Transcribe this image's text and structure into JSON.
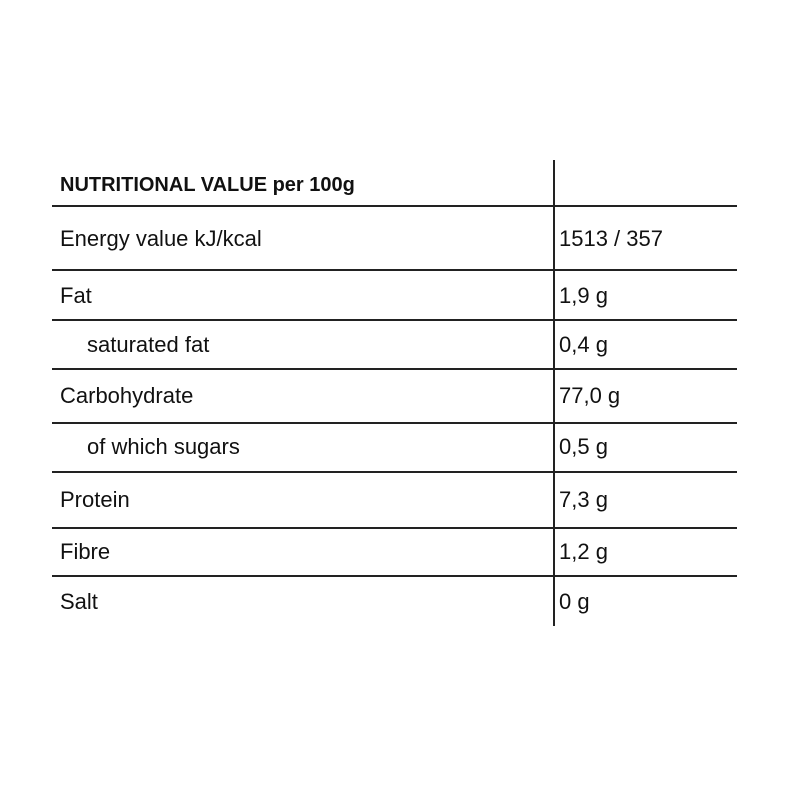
{
  "table": {
    "header": "NUTRITIONAL VALUE per 100g",
    "rows": [
      {
        "label": "Energy value kJ/kcal",
        "value": "1513 / 357"
      },
      {
        "label": "Fat",
        "value": "1,9 g"
      },
      {
        "label": "saturated fat",
        "value": "0,4 g"
      },
      {
        "label": "Carbohydrate",
        "value": "77,0 g"
      },
      {
        "label": "of which sugars",
        "value": "0,5 g"
      },
      {
        "label": "Protein",
        "value": "7,3 g"
      },
      {
        "label": "Fibre",
        "value": "1,2 g"
      },
      {
        "label": "Salt",
        "value": "0 g"
      }
    ]
  }
}
